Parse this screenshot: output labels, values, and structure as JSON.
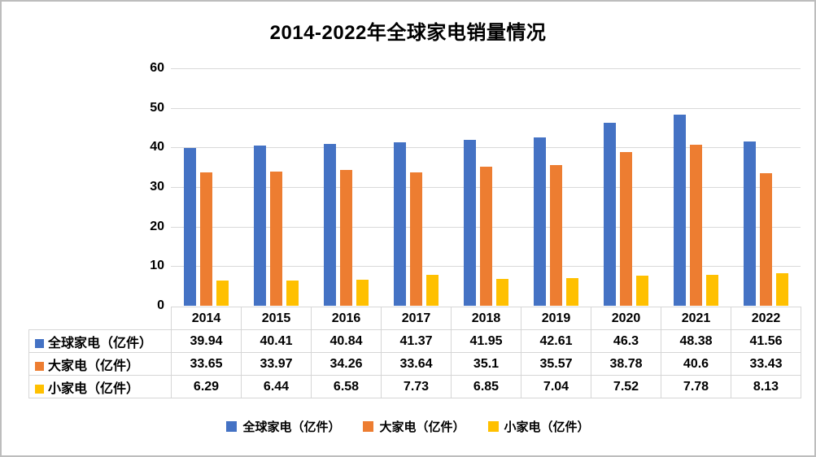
{
  "chart_data": {
    "type": "bar",
    "title": "2014-2022年全球家电销量情况",
    "categories": [
      "2014",
      "2015",
      "2016",
      "2017",
      "2018",
      "2019",
      "2020",
      "2021",
      "2022"
    ],
    "series": [
      {
        "name": "全球家电（亿件）",
        "color": "#4472C4",
        "values": [
          39.94,
          40.41,
          40.84,
          41.37,
          41.95,
          42.61,
          46.3,
          48.38,
          41.56
        ]
      },
      {
        "name": "大家电（亿件）",
        "color": "#ED7D31",
        "values": [
          33.65,
          33.97,
          34.26,
          33.64,
          35.1,
          35.57,
          38.78,
          40.6,
          33.43
        ]
      },
      {
        "name": "小家电（亿件）",
        "color": "#FFC000",
        "values": [
          6.29,
          6.44,
          6.58,
          7.73,
          6.85,
          7.04,
          7.52,
          7.78,
          8.13
        ]
      }
    ],
    "xlabel": "",
    "ylabel": "",
    "ylim": [
      0,
      60
    ],
    "yticks": [
      0,
      10,
      20,
      30,
      40,
      50,
      60
    ],
    "grid": true,
    "legend_position": "bottom",
    "legend_labels": [
      "全球家电（亿件）",
      "大家电（亿件）",
      "小家电（亿件）"
    ],
    "data_table_shown": true
  }
}
